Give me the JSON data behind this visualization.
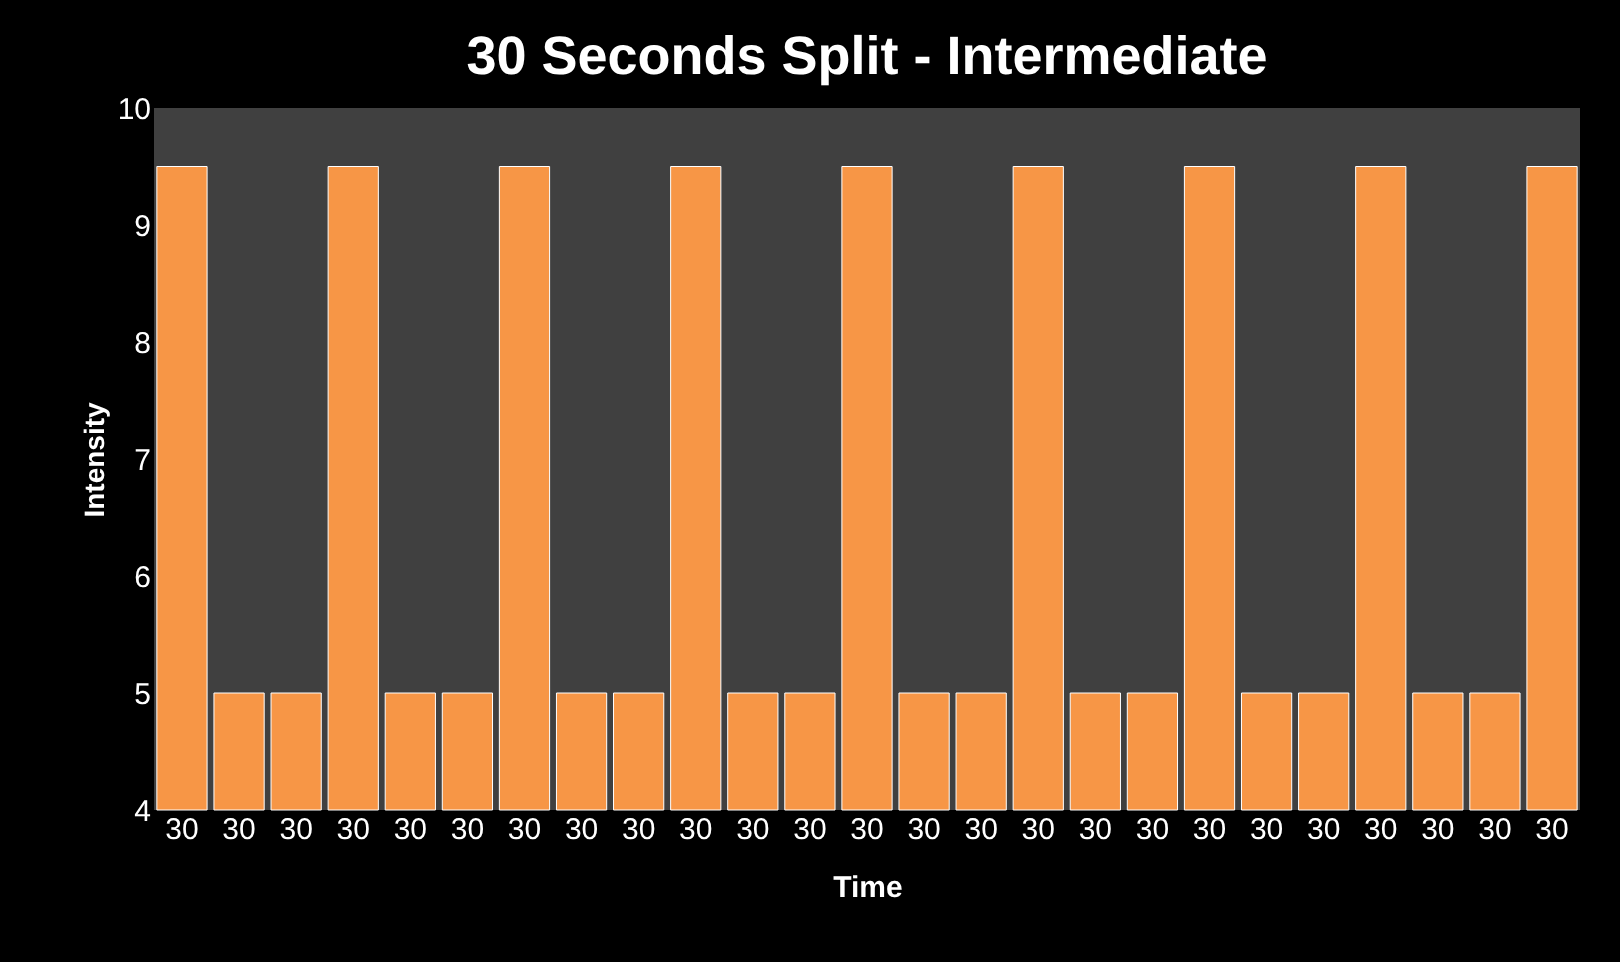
{
  "chart_data": {
    "type": "bar",
    "title": "30 Seconds Split - Intermediate",
    "xlabel": "Time",
    "ylabel": "Intensity",
    "categories": [
      "30",
      "30",
      "30",
      "30",
      "30",
      "30",
      "30",
      "30",
      "30",
      "30",
      "30",
      "30",
      "30",
      "30",
      "30",
      "30",
      "30",
      "30",
      "30",
      "30",
      "30",
      "30",
      "30",
      "30",
      "30"
    ],
    "values": [
      9.5,
      5,
      5,
      9.5,
      5,
      5,
      9.5,
      5,
      5,
      9.5,
      5,
      5,
      9.5,
      5,
      5,
      9.5,
      5,
      5,
      9.5,
      5,
      5,
      9.5,
      5,
      5,
      9.5
    ],
    "color": "#f79646",
    "ylim": [
      4,
      10
    ],
    "yticks": [
      4,
      5,
      6,
      7,
      8,
      9,
      10
    ],
    "grid": false
  }
}
